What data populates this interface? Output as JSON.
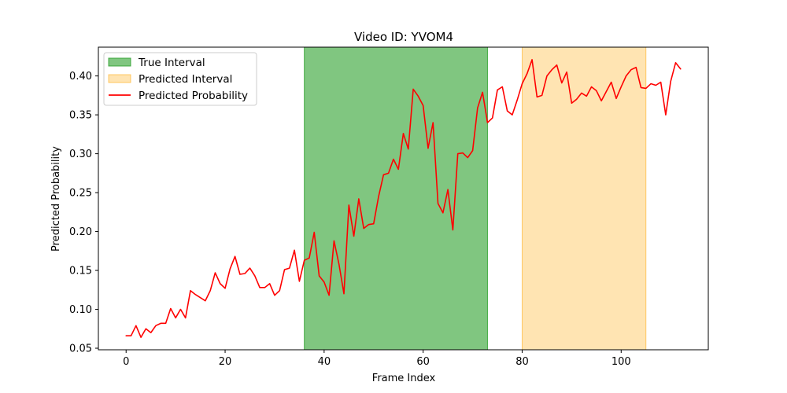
{
  "chart_data": {
    "type": "line",
    "title": "Video ID: YVOM4",
    "xlabel": "Frame Index",
    "ylabel": "Predicted Probability",
    "xlim": [
      -5.6,
      117.6
    ],
    "ylim": [
      0.048,
      0.437
    ],
    "xticks": [
      0,
      20,
      40,
      60,
      80,
      100
    ],
    "yticks": [
      0.05,
      0.1,
      0.15,
      0.2,
      0.25,
      0.3,
      0.35,
      0.4
    ],
    "ytick_labels": [
      "0.05",
      "0.10",
      "0.15",
      "0.20",
      "0.25",
      "0.30",
      "0.35",
      "0.40"
    ],
    "grid": false,
    "legend_position": "upper-left",
    "intervals": [
      {
        "name": "True Interval",
        "start": 36,
        "end": 73,
        "color": "#2ca02c",
        "opacity": 0.6
      },
      {
        "name": "Predicted Interval",
        "start": 80,
        "end": 105,
        "color": "#ffa500",
        "opacity": 0.3
      }
    ],
    "series": [
      {
        "name": "Predicted Probability",
        "color": "#ff0000",
        "x": [
          0,
          1,
          2,
          3,
          4,
          5,
          6,
          7,
          8,
          9,
          10,
          11,
          12,
          13,
          14,
          15,
          16,
          17,
          18,
          19,
          20,
          21,
          22,
          23,
          24,
          25,
          26,
          27,
          28,
          29,
          30,
          31,
          32,
          33,
          34,
          35,
          36,
          37,
          38,
          39,
          40,
          41,
          42,
          43,
          44,
          45,
          46,
          47,
          48,
          49,
          50,
          51,
          52,
          53,
          54,
          55,
          56,
          57,
          58,
          59,
          60,
          61,
          62,
          63,
          64,
          65,
          66,
          67,
          68,
          69,
          70,
          71,
          72,
          73,
          74,
          75,
          76,
          77,
          78,
          79,
          80,
          81,
          82,
          83,
          84,
          85,
          86,
          87,
          88,
          89,
          90,
          91,
          92,
          93,
          94,
          95,
          96,
          97,
          98,
          99,
          100,
          101,
          102,
          103,
          104,
          105,
          106,
          107,
          108,
          109,
          110,
          111,
          112
        ],
        "values": [
          0.066,
          0.066,
          0.079,
          0.064,
          0.075,
          0.07,
          0.079,
          0.082,
          0.082,
          0.101,
          0.089,
          0.1,
          0.089,
          0.124,
          0.119,
          0.115,
          0.111,
          0.124,
          0.147,
          0.133,
          0.127,
          0.152,
          0.168,
          0.145,
          0.146,
          0.153,
          0.143,
          0.128,
          0.128,
          0.133,
          0.118,
          0.124,
          0.151,
          0.153,
          0.176,
          0.136,
          0.163,
          0.166,
          0.199,
          0.143,
          0.135,
          0.118,
          0.188,
          0.158,
          0.12,
          0.234,
          0.194,
          0.242,
          0.204,
          0.209,
          0.21,
          0.245,
          0.273,
          0.275,
          0.293,
          0.28,
          0.326,
          0.306,
          0.383,
          0.374,
          0.362,
          0.307,
          0.34,
          0.236,
          0.224,
          0.254,
          0.202,
          0.3,
          0.301,
          0.295,
          0.304,
          0.359,
          0.379,
          0.34,
          0.346,
          0.382,
          0.386,
          0.355,
          0.35,
          0.369,
          0.39,
          0.403,
          0.421,
          0.373,
          0.375,
          0.4,
          0.408,
          0.414,
          0.391,
          0.405,
          0.365,
          0.37,
          0.378,
          0.374,
          0.386,
          0.381,
          0.368,
          0.38,
          0.392,
          0.371,
          0.386,
          0.4,
          0.408,
          0.411,
          0.385,
          0.384,
          0.39,
          0.388,
          0.392,
          0.35,
          0.393,
          0.417,
          0.409
        ]
      }
    ]
  }
}
